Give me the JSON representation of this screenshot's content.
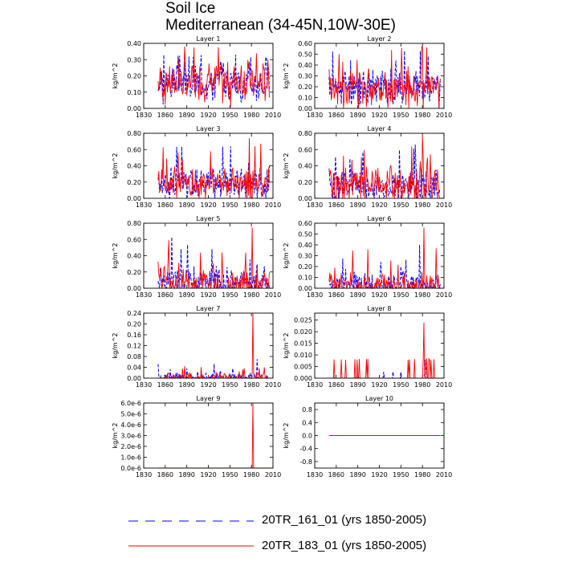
{
  "figure": {
    "title": "Soil Ice",
    "subtitle": "Mediterranean (34-45N,10W-30E)"
  },
  "legend": [
    {
      "label": "20TR_161_01 (yrs 1850-2005)",
      "color": "#0000ff",
      "style": "dashed"
    },
    {
      "label": "20TR_183_01 (yrs 1850-2005)",
      "color": "#ff0000",
      "style": "solid"
    }
  ],
  "chart_data": [
    {
      "type": "line",
      "title": "Layer 1",
      "ylabel": "kg/m^2",
      "xlim": [
        1830,
        2010
      ],
      "xticks": [
        1830,
        1860,
        1890,
        1920,
        1950,
        1980,
        2010
      ],
      "ylim": [
        0,
        0.4
      ],
      "yticks": [
        0,
        0.1,
        0.2,
        0.3,
        0.4
      ],
      "ytick_labels": [
        "0.00",
        "0.10",
        "0.20",
        "0.30",
        "0.40"
      ],
      "series": [
        {
          "name": "20TR_161_01",
          "x_start": 1850,
          "x_end": 2005,
          "base": 0.16,
          "amp": 0.11,
          "max": 0.33,
          "spike_year": 1958,
          "seed": 3
        },
        {
          "name": "20TR_183_01",
          "x_start": 1850,
          "x_end": 2005,
          "base": 0.16,
          "amp": 0.12,
          "max": 0.38,
          "spike_year": 1887,
          "seed": 7
        }
      ]
    },
    {
      "type": "line",
      "title": "Layer 2",
      "ylabel": "kg/m^2",
      "xlim": [
        1830,
        2010
      ],
      "xticks": [
        1830,
        1860,
        1890,
        1920,
        1950,
        1980,
        2010
      ],
      "ylim": [
        0,
        0.6
      ],
      "yticks": [
        0,
        0.1,
        0.2,
        0.3,
        0.4,
        0.5,
        0.6
      ],
      "ytick_labels": [
        "0.00",
        "0.10",
        "0.20",
        "0.30",
        "0.40",
        "0.50",
        "0.60"
      ],
      "series": [
        {
          "name": "20TR_161_01",
          "x_start": 1850,
          "x_end": 2005,
          "base": 0.2,
          "amp": 0.16,
          "max": 0.53,
          "spike_year": 1955,
          "seed": 11
        },
        {
          "name": "20TR_183_01",
          "x_start": 1850,
          "x_end": 2005,
          "base": 0.2,
          "amp": 0.17,
          "max": 0.57,
          "spike_year": 1980,
          "seed": 13
        }
      ]
    },
    {
      "type": "line",
      "title": "Layer 3",
      "ylabel": "kg/m^2",
      "xlim": [
        1830,
        2010
      ],
      "xticks": [
        1830,
        1860,
        1890,
        1920,
        1950,
        1980,
        2010
      ],
      "ylim": [
        0,
        0.8
      ],
      "yticks": [
        0,
        0.2,
        0.4,
        0.6,
        0.8
      ],
      "ytick_labels": [
        "0.00",
        "0.20",
        "0.40",
        "0.60",
        "0.80"
      ],
      "series": [
        {
          "name": "20TR_161_01",
          "x_start": 1850,
          "x_end": 2005,
          "base": 0.18,
          "amp": 0.2,
          "max": 0.64,
          "spike_year": 1951,
          "seed": 17
        },
        {
          "name": "20TR_183_01",
          "x_start": 1850,
          "x_end": 2005,
          "base": 0.18,
          "amp": 0.2,
          "max": 0.74,
          "spike_year": 1977,
          "seed": 19
        }
      ]
    },
    {
      "type": "line",
      "title": "Layer 4",
      "ylabel": "kg/m^2",
      "xlim": [
        1830,
        2010
      ],
      "xticks": [
        1830,
        1860,
        1890,
        1920,
        1950,
        1980,
        2010
      ],
      "ylim": [
        0,
        0.8
      ],
      "yticks": [
        0,
        0.2,
        0.4,
        0.6,
        0.8
      ],
      "ytick_labels": [
        "0.00",
        "0.20",
        "0.40",
        "0.60",
        "0.80"
      ],
      "series": [
        {
          "name": "20TR_161_01",
          "x_start": 1850,
          "x_end": 2005,
          "base": 0.15,
          "amp": 0.2,
          "max": 0.66,
          "spike_year": 1970,
          "seed": 23
        },
        {
          "name": "20TR_183_01",
          "x_start": 1850,
          "x_end": 2005,
          "base": 0.15,
          "amp": 0.22,
          "max": 0.77,
          "spike_year": 1980,
          "seed": 29
        }
      ]
    },
    {
      "type": "line",
      "title": "Layer 5",
      "ylabel": "kg/m^2",
      "xlim": [
        1830,
        2010
      ],
      "xticks": [
        1830,
        1860,
        1890,
        1920,
        1950,
        1980,
        2010
      ],
      "ylim": [
        0,
        0.8
      ],
      "yticks": [
        0,
        0.2,
        0.4,
        0.6,
        0.8
      ],
      "ytick_labels": [
        "0.00",
        "0.20",
        "0.40",
        "0.60",
        "0.80"
      ],
      "series": [
        {
          "name": "20TR_161_01",
          "x_start": 1850,
          "x_end": 2005,
          "base": 0.06,
          "amp": 0.2,
          "max": 0.63,
          "spike_year": 1869,
          "seed": 31
        },
        {
          "name": "20TR_183_01",
          "x_start": 1850,
          "x_end": 2005,
          "base": 0.06,
          "amp": 0.22,
          "max": 0.75,
          "spike_year": 1981,
          "seed": 37
        }
      ]
    },
    {
      "type": "line",
      "title": "Layer 6",
      "ylabel": "kg/m^2",
      "xlim": [
        1830,
        2010
      ],
      "xticks": [
        1830,
        1860,
        1890,
        1920,
        1950,
        1980,
        2010
      ],
      "ylim": [
        0,
        0.6
      ],
      "yticks": [
        0,
        0.1,
        0.2,
        0.3,
        0.4,
        0.5,
        0.6
      ],
      "ytick_labels": [
        "0.00",
        "0.10",
        "0.20",
        "0.30",
        "0.40",
        "0.50",
        "0.60"
      ],
      "series": [
        {
          "name": "20TR_161_01",
          "x_start": 1850,
          "x_end": 2005,
          "base": 0.02,
          "amp": 0.12,
          "max": 0.4,
          "spike_year": 1976,
          "seed": 41
        },
        {
          "name": "20TR_183_01",
          "x_start": 1850,
          "x_end": 2005,
          "base": 0.02,
          "amp": 0.14,
          "max": 0.56,
          "spike_year": 1982,
          "seed": 43
        }
      ]
    },
    {
      "type": "line",
      "title": "Layer 7",
      "ylabel": "kg/m^2",
      "xlim": [
        1830,
        2010
      ],
      "xticks": [
        1830,
        1860,
        1890,
        1920,
        1950,
        1980,
        2010
      ],
      "ylim": [
        0,
        0.24
      ],
      "yticks": [
        0,
        0.04,
        0.08,
        0.12,
        0.16,
        0.2,
        0.24
      ],
      "ytick_labels": [
        "0.00",
        "0.04",
        "0.08",
        "0.12",
        "0.16",
        "0.20",
        "0.24"
      ],
      "series": [
        {
          "name": "20TR_161_01",
          "x_start": 1850,
          "x_end": 2005,
          "base": 0.0,
          "amp": 0.02,
          "max": 0.07,
          "spike_year": 1988,
          "seed": 47
        },
        {
          "name": "20TR_183_01",
          "x_start": 1850,
          "x_end": 2005,
          "base": 0.0,
          "amp": 0.02,
          "max": 0.24,
          "spike_year": 1982,
          "seed": 53
        }
      ]
    },
    {
      "type": "line",
      "title": "Layer 8",
      "ylabel": "kg/m^2",
      "xlim": [
        1830,
        2010
      ],
      "xticks": [
        1830,
        1860,
        1890,
        1920,
        1950,
        1980,
        2010
      ],
      "ylim": [
        0,
        0.028
      ],
      "yticks": [
        0,
        0.005,
        0.01,
        0.015,
        0.02,
        0.025
      ],
      "ytick_labels": [
        "0.000",
        "0.005",
        "0.010",
        "0.015",
        "0.020",
        "0.025"
      ],
      "series": [
        {
          "name": "20TR_161_01",
          "x_start": 1850,
          "x_end": 2005,
          "base": 0.0,
          "amp": 0.0,
          "max": 0.008,
          "spike_year": 1984,
          "seed": 59,
          "sparse": true
        },
        {
          "name": "20TR_183_01",
          "x_start": 1850,
          "x_end": 2005,
          "base": 0.0,
          "amp": 0.0,
          "max": 0.024,
          "spike_year": 1982,
          "seed": 61,
          "sparse": true
        }
      ]
    },
    {
      "type": "line",
      "title": "Layer 9",
      "ylabel": "kg/m^2",
      "xlim": [
        1830,
        2010
      ],
      "xticks": [
        1830,
        1860,
        1890,
        1920,
        1950,
        1980,
        2010
      ],
      "ylim": [
        0,
        6e-06
      ],
      "yticks": [
        0,
        1e-06,
        2e-06,
        3e-06,
        4e-06,
        5e-06,
        6e-06
      ],
      "ytick_labels": [
        "0.0e-6",
        "1.0e-6",
        "2.0e-6",
        "3.0e-6",
        "4.0e-6",
        "5.0e-6",
        "6.0e-6"
      ],
      "series": [
        {
          "name": "20TR_161_01",
          "x_start": 1850,
          "x_end": 2005,
          "base": 0.0,
          "amp": 0.0,
          "max": 0.0,
          "spike_year": 1982,
          "seed": 67,
          "flat": true
        },
        {
          "name": "20TR_183_01",
          "x_start": 1850,
          "x_end": 2005,
          "base": 0.0,
          "amp": 0.0,
          "max": 6e-06,
          "spike_year": 1982,
          "seed": 71,
          "single": true
        }
      ]
    },
    {
      "type": "line",
      "title": "Layer 10",
      "ylabel": "kg/m^2",
      "xlim": [
        1830,
        2010
      ],
      "xticks": [
        1830,
        1860,
        1890,
        1920,
        1950,
        1980,
        2010
      ],
      "ylim": [
        -1,
        1
      ],
      "yticks": [
        -0.8,
        -0.4,
        0,
        0.4,
        0.8
      ],
      "ytick_labels": [
        "-0.8",
        "-0.4",
        "0.0",
        "0.4",
        "0.8"
      ],
      "series": [
        {
          "name": "20TR_161_01",
          "x_start": 1850,
          "x_end": 2005,
          "base": 0.0,
          "amp": 0.0,
          "max": 0.0,
          "spike_year": 1982,
          "seed": 73,
          "flat": true
        },
        {
          "name": "20TR_183_01",
          "x_start": 1850,
          "x_end": 2005,
          "base": 0.0,
          "amp": 0.0,
          "max": 0.0,
          "spike_year": 1982,
          "seed": 79,
          "flat": true
        }
      ]
    }
  ]
}
